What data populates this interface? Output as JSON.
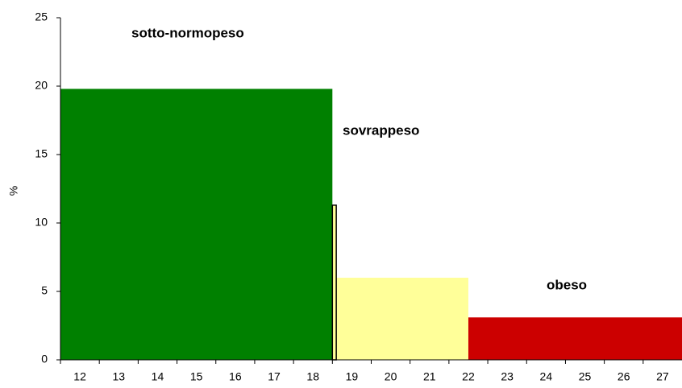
{
  "chart_data": {
    "type": "histogram",
    "ylabel": "%",
    "bins": [
      11.5,
      18.5,
      22,
      27.5
    ],
    "values": [
      19.8,
      6,
      3.1
    ],
    "colors": [
      "#008000",
      "#ffff99",
      "#cc0000"
    ],
    "extra_bar": {
      "bins": [
        18.5,
        18.6
      ],
      "value": 11.3,
      "color": "#ffff99"
    },
    "annotations": [
      "sotto-normopeso",
      "sovrappeso",
      "obeso"
    ],
    "xlim": [
      11.5,
      27.5
    ],
    "xticks": [
      12,
      13,
      14,
      15,
      16,
      17,
      18,
      19,
      20,
      21,
      22,
      23,
      24,
      25,
      26,
      27
    ],
    "ylim": [
      0,
      25
    ],
    "yticks": [
      0,
      5,
      10,
      15,
      20,
      25
    ]
  }
}
